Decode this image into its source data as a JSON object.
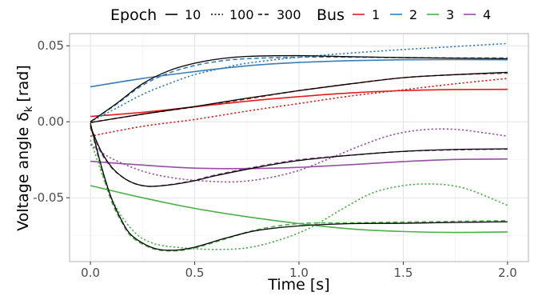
{
  "chart_data": {
    "type": "line",
    "xlabel": "Time [s]",
    "ylabel": {
      "prefix": "Voltage angle",
      "symbol": "δ",
      "subscript": "k",
      "unit": "[rad]"
    },
    "xlim": [
      -0.1,
      2.1
    ],
    "ylim": [
      -0.092,
      0.058
    ],
    "x_ticks": [
      0.0,
      0.5,
      1.0,
      1.5,
      2.0
    ],
    "x_tick_labels": [
      "0.0",
      "0.5",
      "1.0",
      "1.5",
      "2.0"
    ],
    "y_ticks": [
      -0.05,
      0.0,
      0.05
    ],
    "y_tick_labels": [
      "-0.05",
      "0.00",
      "0.05"
    ],
    "grid": true,
    "legend_position": "top",
    "legend": {
      "epoch_title": "Epoch",
      "bus_title": "Bus",
      "epochs": [
        {
          "label": "10",
          "style": "solid"
        },
        {
          "label": "100",
          "style": "dotted"
        },
        {
          "label": "300",
          "style": "dashed"
        }
      ],
      "buses": [
        {
          "label": "1",
          "color": "#e41a1c"
        },
        {
          "label": "2",
          "color": "#377eb8"
        },
        {
          "label": "3",
          "color": "#4daf4a"
        },
        {
          "label": "4",
          "color": "#984ea3"
        }
      ]
    },
    "reference_color": "#000000",
    "series": [
      {
        "bus": "1",
        "epoch": "10",
        "color": "#e41a1c",
        "style": "solid",
        "x": [
          0,
          0.25,
          0.5,
          0.75,
          1.0,
          1.25,
          1.5,
          1.75,
          2.0
        ],
        "y": [
          0.0035,
          0.0062,
          0.0098,
          0.0135,
          0.0165,
          0.019,
          0.0205,
          0.0212,
          0.0213
        ]
      },
      {
        "bus": "1",
        "epoch": "100",
        "color": "#e41a1c",
        "style": "dotted",
        "x": [
          0,
          0.25,
          0.5,
          0.75,
          1.0,
          1.25,
          1.5,
          1.75,
          2.0
        ],
        "y": [
          -0.0095,
          -0.003,
          0.0015,
          0.007,
          0.012,
          0.017,
          0.021,
          0.025,
          0.0285
        ]
      },
      {
        "bus": "1",
        "epoch": "300",
        "color": "#e41a1c",
        "style": "dashed",
        "x": [
          0,
          0.25,
          0.5,
          0.75,
          1.0,
          1.25,
          1.5,
          1.75,
          2.0
        ],
        "y": [
          -0.0005,
          0.005,
          0.0098,
          0.015,
          0.0205,
          0.025,
          0.029,
          0.031,
          0.032
        ]
      },
      {
        "bus": "1",
        "epoch": "ref",
        "color": "#000000",
        "style": "solid",
        "x": [
          0,
          0.25,
          0.5,
          0.75,
          1.0,
          1.25,
          1.5,
          1.75,
          2.0
        ],
        "y": [
          -0.0005,
          0.005,
          0.01,
          0.0155,
          0.0205,
          0.025,
          0.029,
          0.031,
          0.0325
        ]
      },
      {
        "bus": "2",
        "epoch": "10",
        "color": "#377eb8",
        "style": "solid",
        "x": [
          0,
          0.25,
          0.5,
          0.75,
          1.0,
          1.25,
          1.5,
          1.75,
          2.0
        ],
        "y": [
          0.023,
          0.0285,
          0.033,
          0.0368,
          0.039,
          0.0402,
          0.0408,
          0.0409,
          0.0408
        ]
      },
      {
        "bus": "2",
        "epoch": "100",
        "color": "#377eb8",
        "style": "dotted",
        "x": [
          0,
          0.125,
          0.25,
          0.375,
          0.5,
          0.625,
          0.75,
          1.0,
          1.25,
          1.5,
          1.75,
          2.0
        ],
        "y": [
          0,
          0.009,
          0.018,
          0.025,
          0.031,
          0.035,
          0.0385,
          0.0425,
          0.0452,
          0.0475,
          0.0495,
          0.0515
        ]
      },
      {
        "bus": "2",
        "epoch": "300",
        "color": "#377eb8",
        "style": "dashed",
        "x": [
          0,
          0.125,
          0.25,
          0.375,
          0.5,
          0.625,
          0.75,
          1.0,
          1.25,
          1.5,
          1.75,
          2.0
        ],
        "y": [
          0,
          0.0115,
          0.024,
          0.032,
          0.037,
          0.04,
          0.0415,
          0.0425,
          0.0425,
          0.0422,
          0.042,
          0.042
        ]
      },
      {
        "bus": "2",
        "epoch": "ref",
        "color": "#000000",
        "style": "solid",
        "x": [
          0,
          0.125,
          0.25,
          0.375,
          0.5,
          0.625,
          0.75,
          1.0,
          1.25,
          1.5,
          1.75,
          2.0
        ],
        "y": [
          0,
          0.012,
          0.025,
          0.0335,
          0.0385,
          0.0415,
          0.043,
          0.0435,
          0.0428,
          0.0422,
          0.0418,
          0.0415
        ]
      },
      {
        "bus": "3",
        "epoch": "10",
        "color": "#4daf4a",
        "style": "solid",
        "x": [
          0,
          0.25,
          0.5,
          0.75,
          1.0,
          1.25,
          1.5,
          1.75,
          2.0
        ],
        "y": [
          -0.042,
          -0.05,
          -0.057,
          -0.0625,
          -0.067,
          -0.0705,
          -0.0722,
          -0.0728,
          -0.0725
        ]
      },
      {
        "bus": "3",
        "epoch": "100",
        "color": "#4daf4a",
        "style": "dotted",
        "x": [
          0,
          0.1,
          0.2,
          0.3,
          0.45,
          0.6,
          0.75,
          0.9,
          1.05,
          1.2,
          1.35,
          1.5,
          1.65,
          1.8,
          2.0
        ],
        "y": [
          -0.012,
          -0.05,
          -0.071,
          -0.08,
          -0.083,
          -0.084,
          -0.083,
          -0.078,
          -0.07,
          -0.058,
          -0.047,
          -0.042,
          -0.041,
          -0.044,
          -0.055
        ]
      },
      {
        "bus": "3",
        "epoch": "300",
        "color": "#4daf4a",
        "style": "dashed",
        "x": [
          0,
          0.05,
          0.1,
          0.15,
          0.2,
          0.3,
          0.4,
          0.5,
          0.65,
          0.8,
          1.0,
          1.25,
          1.5,
          1.75,
          2.0
        ],
        "y": [
          -0.002,
          -0.03,
          -0.052,
          -0.066,
          -0.076,
          -0.0835,
          -0.085,
          -0.083,
          -0.077,
          -0.071,
          -0.067,
          -0.0665,
          -0.066,
          -0.0655,
          -0.065
        ]
      },
      {
        "bus": "3",
        "epoch": "ref",
        "color": "#000000",
        "style": "solid",
        "x": [
          0,
          0.05,
          0.1,
          0.15,
          0.2,
          0.3,
          0.4,
          0.5,
          0.65,
          0.8,
          1.0,
          1.25,
          1.5,
          1.75,
          2.0
        ],
        "y": [
          -0.001,
          -0.028,
          -0.05,
          -0.065,
          -0.075,
          -0.083,
          -0.0845,
          -0.0825,
          -0.0765,
          -0.0715,
          -0.0685,
          -0.067,
          -0.0668,
          -0.0662,
          -0.0658
        ]
      },
      {
        "bus": "4",
        "epoch": "10",
        "color": "#984ea3",
        "style": "solid",
        "x": [
          0,
          0.25,
          0.5,
          0.75,
          1.0,
          1.25,
          1.5,
          1.75,
          2.0
        ],
        "y": [
          -0.026,
          -0.0285,
          -0.0305,
          -0.0308,
          -0.03,
          -0.0282,
          -0.0262,
          -0.0248,
          -0.0245
        ]
      },
      {
        "bus": "4",
        "epoch": "100",
        "color": "#984ea3",
        "style": "dotted",
        "x": [
          0,
          0.1,
          0.25,
          0.4,
          0.55,
          0.7,
          0.85,
          1.0,
          1.15,
          1.3,
          1.45,
          1.6,
          1.75,
          1.9,
          2.0
        ],
        "y": [
          -0.015,
          -0.024,
          -0.0325,
          -0.037,
          -0.039,
          -0.0395,
          -0.037,
          -0.032,
          -0.024,
          -0.0155,
          -0.0085,
          -0.0052,
          -0.005,
          -0.0075,
          -0.0095
        ]
      },
      {
        "bus": "4",
        "epoch": "300",
        "color": "#984ea3",
        "style": "dashed",
        "x": [
          0,
          0.05,
          0.1,
          0.15,
          0.2,
          0.25,
          0.3,
          0.4,
          0.5,
          0.6,
          0.8,
          1.0,
          1.25,
          1.5,
          1.75,
          2.0
        ],
        "y": [
          -0.004,
          -0.02,
          -0.03,
          -0.036,
          -0.04,
          -0.042,
          -0.0425,
          -0.041,
          -0.0385,
          -0.035,
          -0.0295,
          -0.025,
          -0.022,
          -0.0195,
          -0.0185,
          -0.018
        ]
      },
      {
        "bus": "4",
        "epoch": "ref",
        "color": "#000000",
        "style": "solid",
        "x": [
          0,
          0.05,
          0.1,
          0.15,
          0.2,
          0.25,
          0.3,
          0.4,
          0.5,
          0.6,
          0.8,
          1.0,
          1.25,
          1.5,
          1.75,
          2.0
        ],
        "y": [
          -0.003,
          -0.019,
          -0.0295,
          -0.036,
          -0.04,
          -0.042,
          -0.0425,
          -0.0412,
          -0.0388,
          -0.0355,
          -0.03,
          -0.0255,
          -0.022,
          -0.0195,
          -0.0182,
          -0.0178
        ]
      }
    ]
  }
}
